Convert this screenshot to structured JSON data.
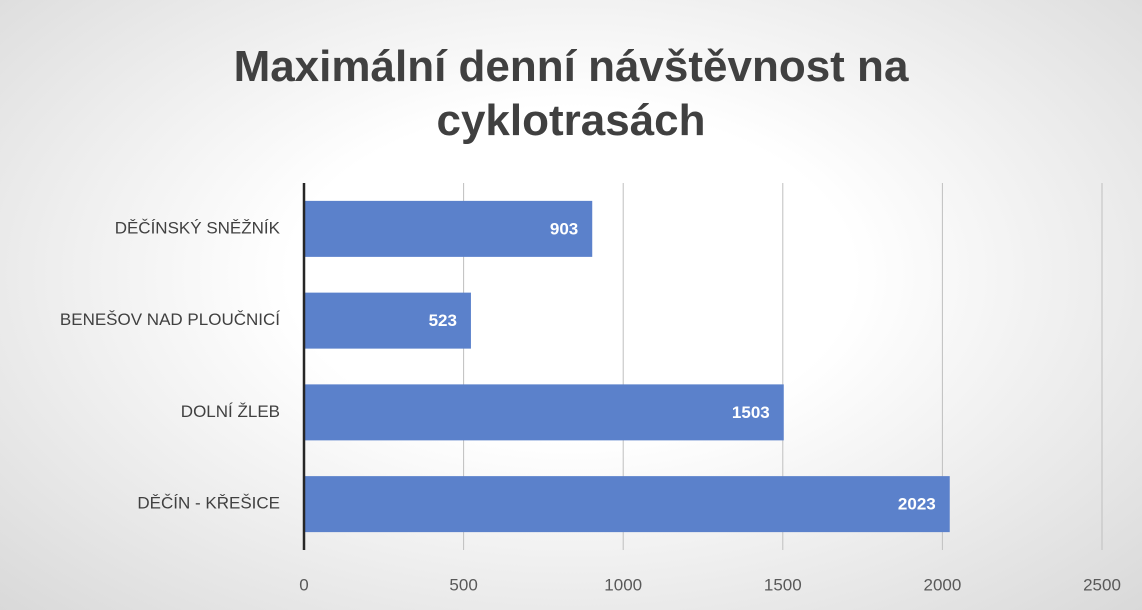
{
  "chart_data": {
    "type": "bar",
    "orientation": "horizontal",
    "title": "Maximální denní návštěvnost na cyklotrasách",
    "categories": [
      "DĚČÍNSKÝ SNĚŽNÍK",
      "BENEŠOV NAD PLOUČNICÍ",
      "DOLNÍ ŽLEB",
      "DĚČÍN - KŘEŠICE"
    ],
    "values": [
      903,
      523,
      1503,
      2023
    ],
    "color": "#5b81cb",
    "xlim": [
      0,
      2500
    ],
    "xticks": [
      0,
      500,
      1000,
      1500,
      2000,
      2500
    ],
    "grid": true
  }
}
